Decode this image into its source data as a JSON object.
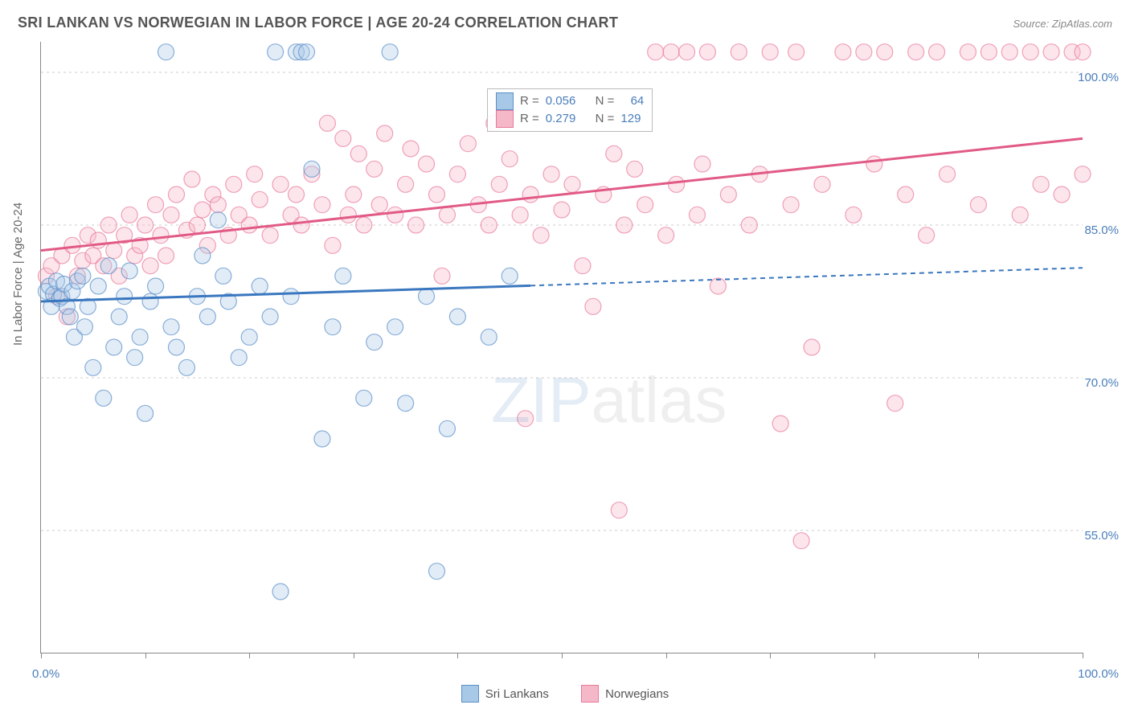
{
  "title": "SRI LANKAN VS NORWEGIAN IN LABOR FORCE | AGE 20-24 CORRELATION CHART",
  "source": "Source: ZipAtlas.com",
  "y_axis_label": "In Labor Force | Age 20-24",
  "watermark_pre": "ZIP",
  "watermark_post": "atlas",
  "colors": {
    "blue_fill": "#a8c8e8",
    "blue_stroke": "#5b8fc7",
    "blue_line": "#3a77bf",
    "pink_fill": "#f5b8c8",
    "pink_stroke": "#e87a9a",
    "pink_line": "#e15a85",
    "tick_text": "#4a7ebb",
    "grid": "#cccccc"
  },
  "chart": {
    "type": "scatter",
    "xlim": [
      0,
      100
    ],
    "ylim": [
      43,
      103
    ],
    "y_ticks": [
      55.0,
      70.0,
      85.0,
      100.0
    ],
    "y_tick_labels": [
      "55.0%",
      "70.0%",
      "85.0%",
      "100.0%"
    ],
    "x_tick_positions": [
      0,
      10,
      20,
      30,
      40,
      50,
      60,
      70,
      80,
      90,
      100
    ],
    "x_min_label": "0.0%",
    "x_max_label": "100.0%",
    "marker_radius": 10,
    "line_width": 3,
    "dash_pattern": "6 5"
  },
  "series": {
    "sri_lankans": {
      "label": "Sri Lankans",
      "R": "0.056",
      "N": "64",
      "trend": {
        "x1": 0,
        "y1": 77.5,
        "x2": 100,
        "y2": 80.8,
        "solid_until_x": 47
      },
      "points": [
        [
          0.5,
          78.5
        ],
        [
          0.8,
          79
        ],
        [
          1,
          77
        ],
        [
          1.2,
          78.2
        ],
        [
          1.5,
          79.5
        ],
        [
          1.8,
          77.8
        ],
        [
          2,
          78
        ],
        [
          2.2,
          79.2
        ],
        [
          2.5,
          77
        ],
        [
          2.8,
          76
        ],
        [
          3,
          78.5
        ],
        [
          3.2,
          74
        ],
        [
          3.5,
          79.5
        ],
        [
          4,
          80
        ],
        [
          4.2,
          75
        ],
        [
          4.5,
          77
        ],
        [
          5,
          71
        ],
        [
          5.5,
          79
        ],
        [
          6,
          68
        ],
        [
          6.5,
          81
        ],
        [
          7,
          73
        ],
        [
          7.5,
          76
        ],
        [
          8,
          78
        ],
        [
          8.5,
          80.5
        ],
        [
          9,
          72
        ],
        [
          9.5,
          74
        ],
        [
          10,
          66.5
        ],
        [
          10.5,
          77.5
        ],
        [
          11,
          79
        ],
        [
          12,
          102
        ],
        [
          12.5,
          75
        ],
        [
          13,
          73
        ],
        [
          14,
          71
        ],
        [
          15,
          78
        ],
        [
          15.5,
          82
        ],
        [
          16,
          76
        ],
        [
          17,
          85.5
        ],
        [
          17.5,
          80
        ],
        [
          18,
          77.5
        ],
        [
          19,
          72
        ],
        [
          20,
          74
        ],
        [
          21,
          79
        ],
        [
          22,
          76
        ],
        [
          22.5,
          102
        ],
        [
          23,
          49
        ],
        [
          24,
          78
        ],
        [
          24.5,
          102
        ],
        [
          25,
          102
        ],
        [
          25.5,
          102
        ],
        [
          26,
          90.5
        ],
        [
          27,
          64
        ],
        [
          28,
          75
        ],
        [
          29,
          80
        ],
        [
          31,
          68
        ],
        [
          32,
          73.5
        ],
        [
          33.5,
          102
        ],
        [
          34,
          75
        ],
        [
          35,
          67.5
        ],
        [
          37,
          78
        ],
        [
          38,
          51
        ],
        [
          39,
          65
        ],
        [
          40,
          76
        ],
        [
          43,
          74
        ],
        [
          45,
          80
        ]
      ]
    },
    "norwegians": {
      "label": "Norwegians",
      "R": "0.279",
      "N": "129",
      "trend": {
        "x1": 0,
        "y1": 82.5,
        "x2": 100,
        "y2": 93.5,
        "solid_until_x": 100
      },
      "points": [
        [
          0.5,
          80
        ],
        [
          1,
          81
        ],
        [
          1.5,
          78
        ],
        [
          2,
          82
        ],
        [
          2.5,
          76
        ],
        [
          3,
          83
        ],
        [
          3.5,
          80
        ],
        [
          4,
          81.5
        ],
        [
          4.5,
          84
        ],
        [
          5,
          82
        ],
        [
          5.5,
          83.5
        ],
        [
          6,
          81
        ],
        [
          6.5,
          85
        ],
        [
          7,
          82.5
        ],
        [
          7.5,
          80
        ],
        [
          8,
          84
        ],
        [
          8.5,
          86
        ],
        [
          9,
          82
        ],
        [
          9.5,
          83
        ],
        [
          10,
          85
        ],
        [
          10.5,
          81
        ],
        [
          11,
          87
        ],
        [
          11.5,
          84
        ],
        [
          12,
          82
        ],
        [
          12.5,
          86
        ],
        [
          13,
          88
        ],
        [
          14,
          84.5
        ],
        [
          14.5,
          89.5
        ],
        [
          15,
          85
        ],
        [
          15.5,
          86.5
        ],
        [
          16,
          83
        ],
        [
          16.5,
          88
        ],
        [
          17,
          87
        ],
        [
          18,
          84
        ],
        [
          18.5,
          89
        ],
        [
          19,
          86
        ],
        [
          20,
          85
        ],
        [
          20.5,
          90
        ],
        [
          21,
          87.5
        ],
        [
          22,
          84
        ],
        [
          23,
          89
        ],
        [
          24,
          86
        ],
        [
          24.5,
          88
        ],
        [
          25,
          85
        ],
        [
          26,
          90
        ],
        [
          27,
          87
        ],
        [
          27.5,
          95
        ],
        [
          28,
          83
        ],
        [
          29,
          93.5
        ],
        [
          29.5,
          86
        ],
        [
          30,
          88
        ],
        [
          30.5,
          92
        ],
        [
          31,
          85
        ],
        [
          32,
          90.5
        ],
        [
          32.5,
          87
        ],
        [
          33,
          94
        ],
        [
          34,
          86
        ],
        [
          35,
          89
        ],
        [
          35.5,
          92.5
        ],
        [
          36,
          85
        ],
        [
          37,
          91
        ],
        [
          38,
          88
        ],
        [
          38.5,
          80
        ],
        [
          39,
          86
        ],
        [
          40,
          90
        ],
        [
          41,
          93
        ],
        [
          42,
          87
        ],
        [
          43,
          85
        ],
        [
          43.5,
          95
        ],
        [
          44,
          89
        ],
        [
          45,
          91.5
        ],
        [
          46,
          86
        ],
        [
          46.5,
          66
        ],
        [
          47,
          88
        ],
        [
          48,
          84
        ],
        [
          49,
          90
        ],
        [
          50,
          86.5
        ],
        [
          51,
          89
        ],
        [
          52,
          81
        ],
        [
          53,
          77
        ],
        [
          54,
          88
        ],
        [
          55,
          92
        ],
        [
          55.5,
          57
        ],
        [
          56,
          85
        ],
        [
          57,
          90.5
        ],
        [
          58,
          87
        ],
        [
          59,
          102
        ],
        [
          60,
          84
        ],
        [
          60.5,
          102
        ],
        [
          61,
          89
        ],
        [
          62,
          102
        ],
        [
          63,
          86
        ],
        [
          63.5,
          91
        ],
        [
          64,
          102
        ],
        [
          65,
          79
        ],
        [
          66,
          88
        ],
        [
          67,
          102
        ],
        [
          68,
          85
        ],
        [
          69,
          90
        ],
        [
          70,
          102
        ],
        [
          71,
          65.5
        ],
        [
          72,
          87
        ],
        [
          72.5,
          102
        ],
        [
          73,
          54
        ],
        [
          74,
          73
        ],
        [
          75,
          89
        ],
        [
          77,
          102
        ],
        [
          78,
          86
        ],
        [
          79,
          102
        ],
        [
          80,
          91
        ],
        [
          81,
          102
        ],
        [
          82,
          67.5
        ],
        [
          83,
          88
        ],
        [
          84,
          102
        ],
        [
          85,
          84
        ],
        [
          86,
          102
        ],
        [
          87,
          90
        ],
        [
          89,
          102
        ],
        [
          90,
          87
        ],
        [
          91,
          102
        ],
        [
          93,
          102
        ],
        [
          94,
          86
        ],
        [
          95,
          102
        ],
        [
          96,
          89
        ],
        [
          97,
          102
        ],
        [
          98,
          88
        ],
        [
          99,
          102
        ],
        [
          100,
          90
        ],
        [
          100,
          102
        ]
      ]
    }
  },
  "legend_top": {
    "row1_r_label": "R =",
    "row1_n_label": "N =",
    "row2_r_label": "R =",
    "row2_n_label": "N ="
  }
}
